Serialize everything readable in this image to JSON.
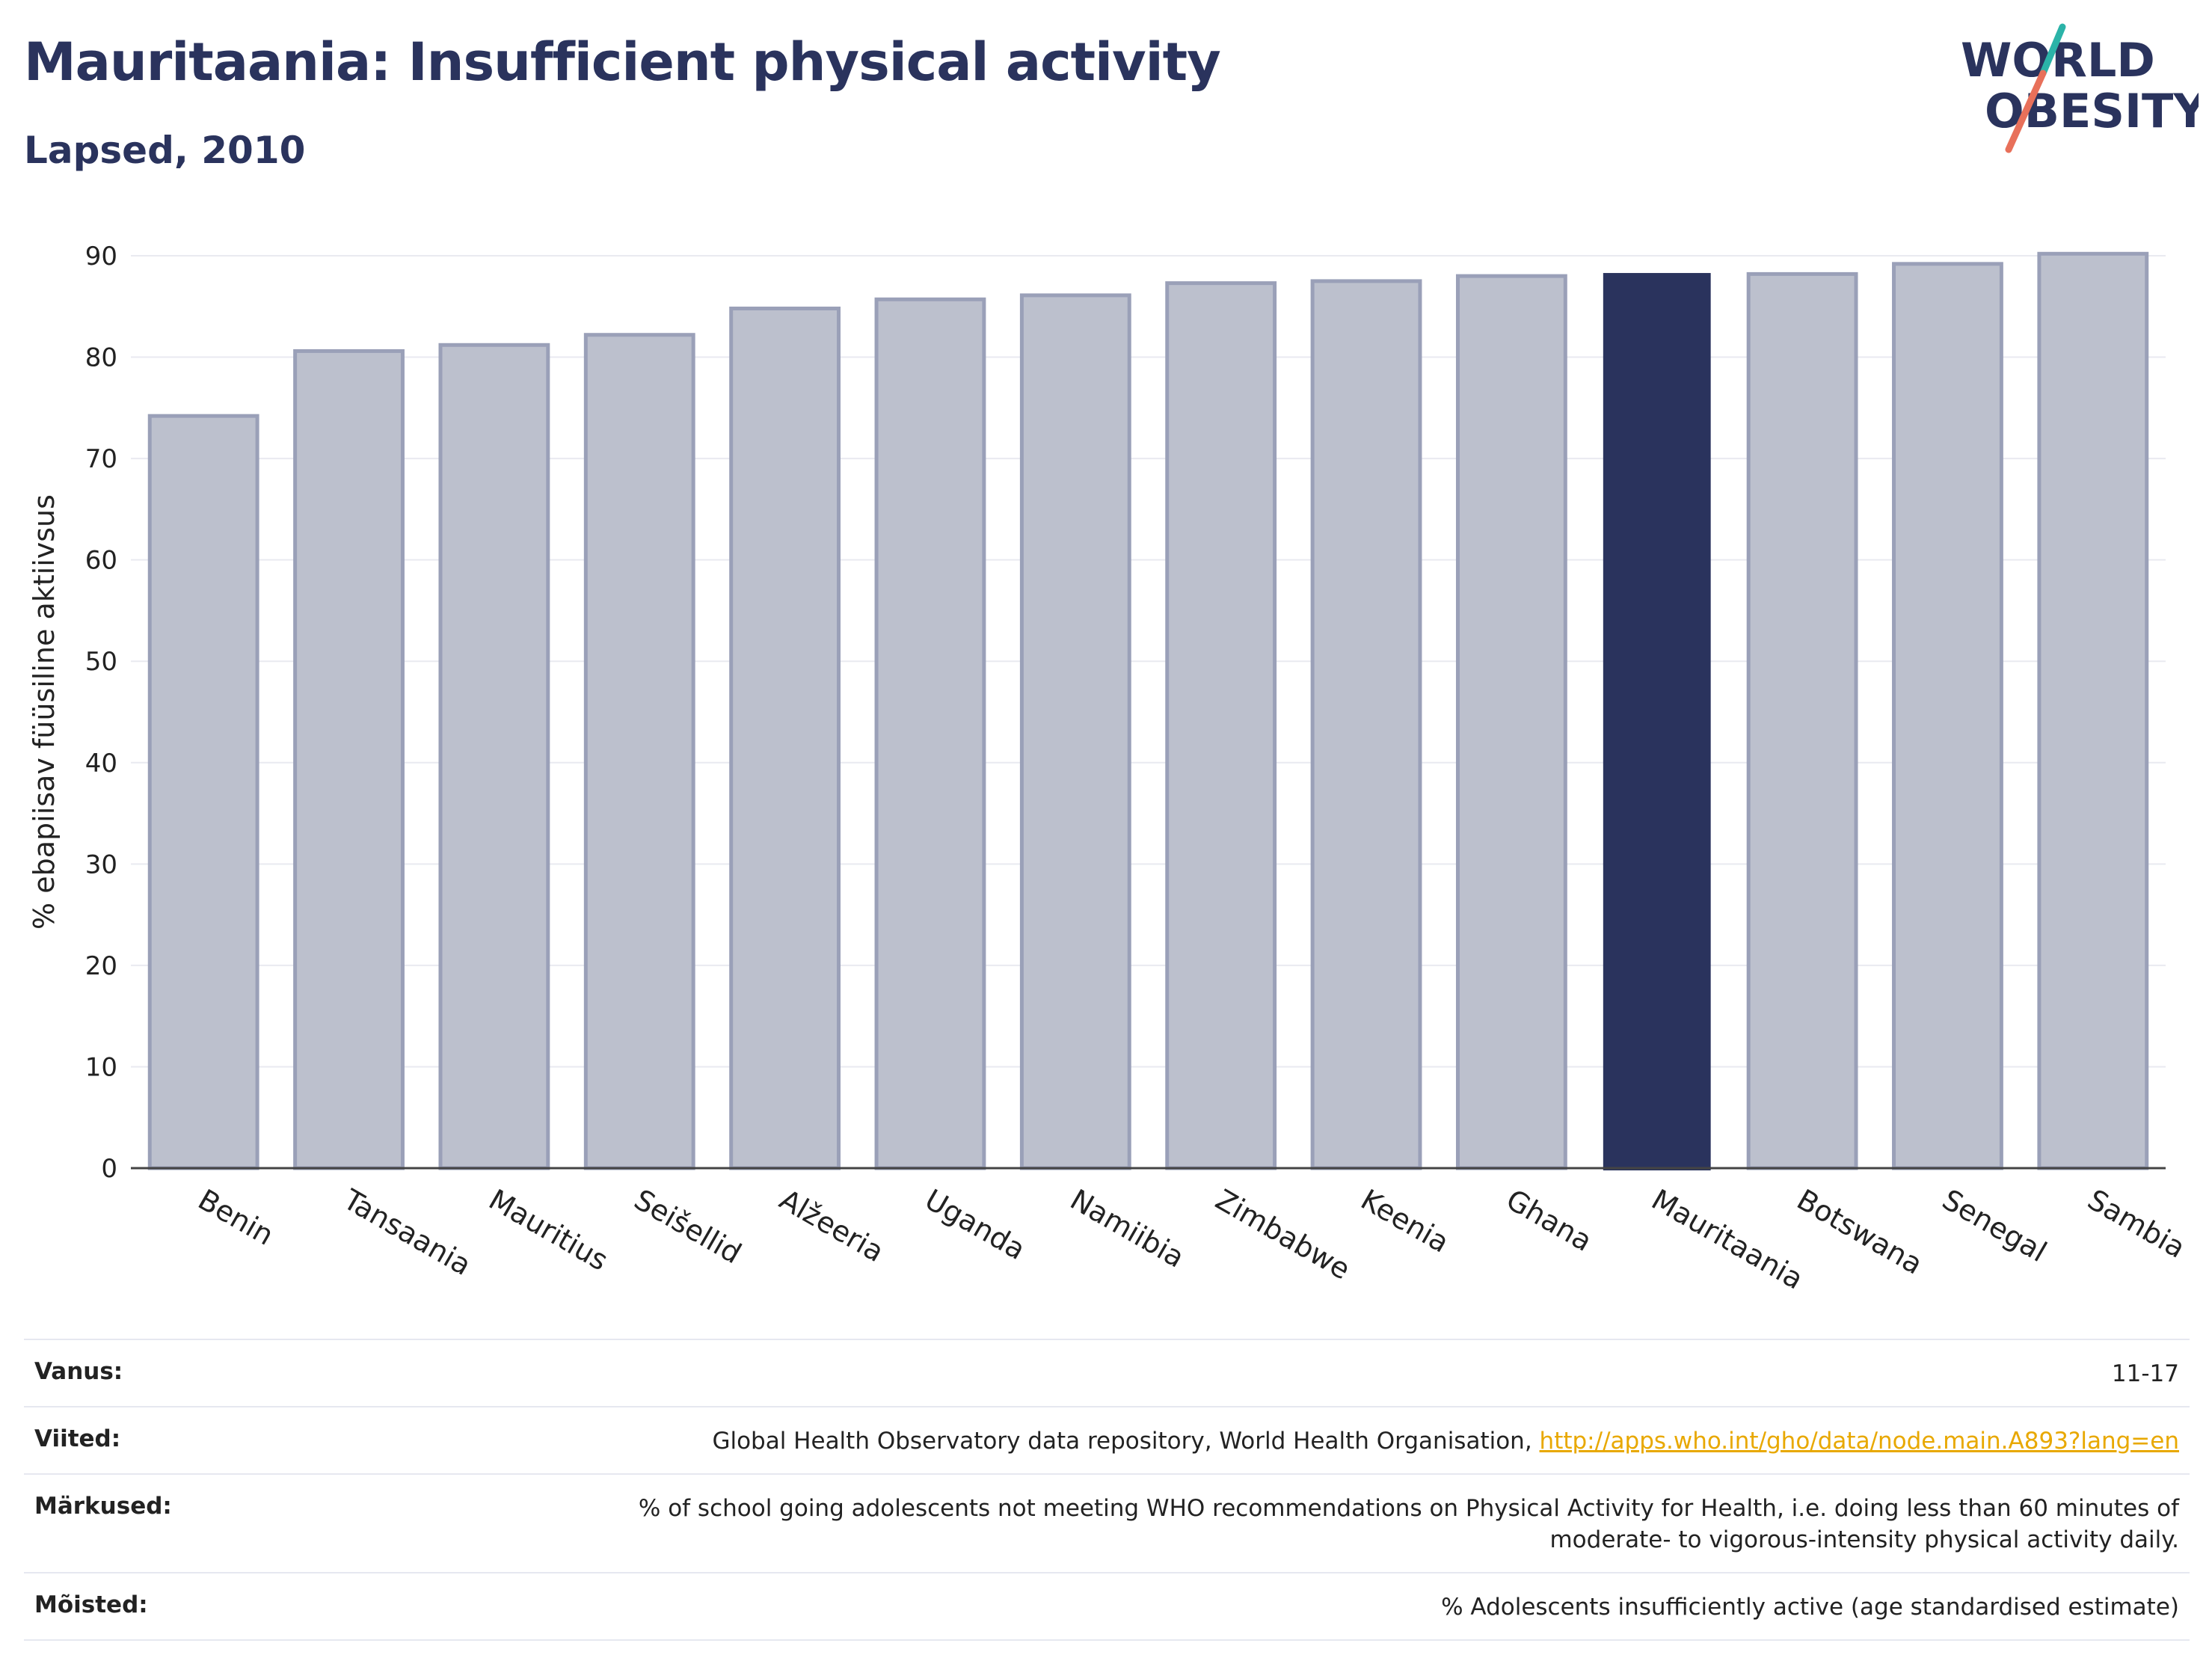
{
  "header": {
    "title": "Mauritaania: Insufficient physical activity",
    "subtitle": "Lapsed, 2010"
  },
  "logo": {
    "line1": "WORLD",
    "line2": "OBESITY",
    "colors": {
      "text": "#2a335d",
      "slash_teal": "#2bb3a8",
      "slash_red": "#e8705a"
    }
  },
  "chart_data": {
    "type": "bar",
    "categories": [
      "Benin",
      "Tansaania",
      "Mauritius",
      "Seišellid",
      "Alžeeria",
      "Uganda",
      "Namiibia",
      "Zimbabwe",
      "Keenia",
      "Ghana",
      "Mauritaania",
      "Botswana",
      "Senegal",
      "Sambia"
    ],
    "values": [
      74.2,
      80.6,
      81.2,
      82.2,
      84.8,
      85.7,
      86.1,
      87.3,
      87.5,
      88.0,
      88.3,
      88.2,
      89.2,
      90.2
    ],
    "highlight": "Mauritaania",
    "ylabel": "% ebapiisav füüsiline aktiivsus",
    "ylim": [
      0,
      90
    ],
    "yticks": [
      0,
      10,
      20,
      30,
      40,
      50,
      60,
      70,
      80,
      90
    ],
    "grid": true,
    "colors": {
      "bar": "#bcc0cd",
      "bar_edge": "#9aa0b8",
      "highlight": "#2a335d",
      "grid": "#e9eaf0",
      "axis": "#444444"
    }
  },
  "meta": [
    {
      "label": "Vanus:",
      "value": "11-17"
    },
    {
      "label": "Viited:",
      "value": "Global Health Observatory data repository, World Health Organisation, ",
      "link": "http://apps.who.int/gho/data/node.main.A893?lang=en"
    },
    {
      "label": "Märkused:",
      "value": "% of school going adolescents not meeting WHO recommendations on Physical Activity for Health, i.e. doing less than 60 minutes of moderate- to vigorous-intensity physical activity daily."
    },
    {
      "label": "Mõisted:",
      "value": "% Adolescents insufficiently active (age standardised estimate)"
    }
  ]
}
